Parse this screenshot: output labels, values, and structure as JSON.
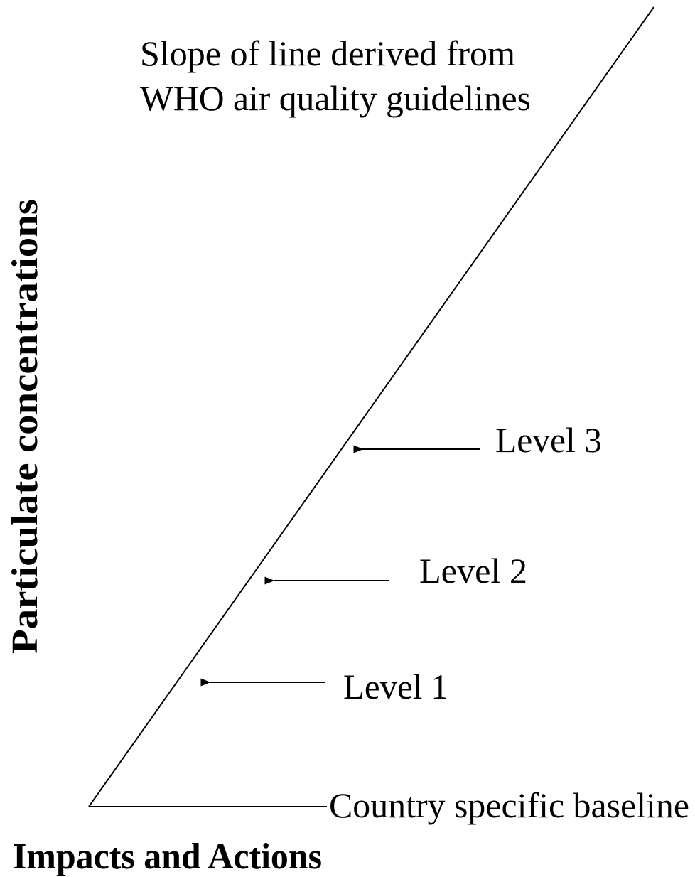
{
  "title": {
    "lines": [
      "Slope of line derived from",
      "WHO air quality guidelines"
    ]
  },
  "y_axis_label": "Particulate concentrations",
  "x_axis_label": "Impacts and Actions",
  "baseline_label": "Country specific baseline",
  "levels": [
    {
      "label": "Level 1"
    },
    {
      "label": "Level 2"
    },
    {
      "label": "Level 3"
    }
  ]
}
